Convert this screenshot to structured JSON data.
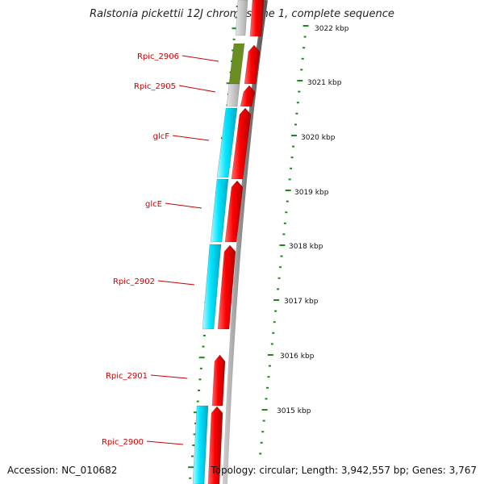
{
  "title": "Ralstonia pickettii 12J chromosome 1, complete sequence",
  "footer": {
    "accession": "Accession: NC_010682",
    "topology": "Topology: circular; Length: 3,942,557 bp; Genes: 3,767"
  },
  "colors": {
    "forward_gene": "#ff0000",
    "reverse_gene": "#00e5ff",
    "gray_gene": "#c0c0c0",
    "olive_gene": "#6b8e23",
    "label": "#cc0000",
    "ruler_tick": "#1a8a1a",
    "backbone": "#808080"
  },
  "diagram_data": {
    "type": "genome-map",
    "ruler_unit": "kbp",
    "ruler_labels": [
      "3022 kbp",
      "3021 kbp",
      "3020 kbp",
      "3019 kbp",
      "3018 kbp",
      "3017 kbp",
      "3016 kbp",
      "3015 kbp"
    ],
    "gene_labels": [
      "Rpic_2906",
      "Rpic_2905",
      "glcF",
      "glcE",
      "Rpic_2902",
      "Rpic_2901",
      "Rpic_2900"
    ]
  }
}
